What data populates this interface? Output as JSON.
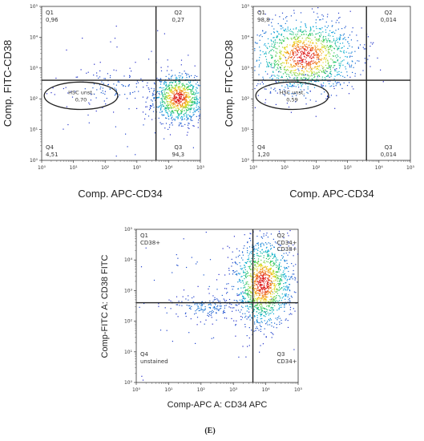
{
  "caption": "(E)",
  "chart_data": [
    {
      "type": "scatter",
      "subtype": "flow-cytometry-density-dot-plot",
      "x_scale": "log",
      "y_scale": "log",
      "xlim": [
        1,
        100000
      ],
      "ylim": [
        1,
        100000
      ],
      "x_ticks": [
        "10⁰",
        "10¹",
        "10²",
        "10³",
        "10⁴",
        "10⁵"
      ],
      "y_ticks": [
        "10⁰",
        "10¹",
        "10²",
        "10³",
        "10⁴",
        "10⁵"
      ],
      "xlabel": "Comp. APC-CD34",
      "ylabel": "Comp. FITC-CD38",
      "quadrant_gate": {
        "x": 4000,
        "y": 400
      },
      "quadrants": [
        {
          "name": "Q1",
          "value": "0,96",
          "position": "top-left"
        },
        {
          "name": "Q2",
          "value": "0,27",
          "position": "top-right"
        },
        {
          "name": "Q3",
          "value": "94,3",
          "position": "bottom-right"
        },
        {
          "name": "Q4",
          "value": "4,51",
          "position": "bottom-left"
        }
      ],
      "gates": [
        {
          "name": "HSC unst.",
          "value": "0,70",
          "shape": "ellipse",
          "x_range": [
            1.2,
            250
          ],
          "y_range": [
            45,
            350
          ]
        }
      ],
      "populations": [
        {
          "x": 20000,
          "y": 110,
          "sx": 0.18,
          "sy": 0.18,
          "n": 900
        },
        {
          "x": 150,
          "y": 230,
          "sx": 0.4,
          "sy": 0.15,
          "n": 120
        },
        {
          "x": 2000,
          "y": 40,
          "sx": 0.8,
          "sy": 0.7,
          "n": 70
        }
      ],
      "grid": false
    },
    {
      "type": "scatter",
      "subtype": "flow-cytometry-density-dot-plot",
      "x_scale": "log",
      "y_scale": "log",
      "xlim": [
        1,
        100000
      ],
      "ylim": [
        1,
        100000
      ],
      "x_ticks": [
        "10⁰",
        "10¹",
        "10²",
        "10³",
        "10⁴",
        "10⁵"
      ],
      "y_ticks": [
        "10⁰",
        "10¹",
        "10²",
        "10³",
        "10⁴",
        "10⁵"
      ],
      "xlabel": "Comp. APC-CD34",
      "ylabel": "Comp. FITC-CD38",
      "quadrant_gate": {
        "x": 4000,
        "y": 400
      },
      "quadrants": [
        {
          "name": "Q1",
          "value": "98,8",
          "position": "top-left"
        },
        {
          "name": "Q2",
          "value": "0,014",
          "position": "top-right"
        },
        {
          "name": "Q3",
          "value": "0,014",
          "position": "bottom-right"
        },
        {
          "name": "Q4",
          "value": "1,20",
          "position": "bottom-left"
        }
      ],
      "gates": [
        {
          "name": "HSC unst.",
          "value": "0,59",
          "shape": "ellipse",
          "x_range": [
            1.2,
            250
          ],
          "y_range": [
            45,
            350
          ]
        }
      ],
      "populations": [
        {
          "x": 40,
          "y": 2500,
          "sx": 0.38,
          "sy": 0.28,
          "n": 1300
        },
        {
          "x": 40,
          "y": 400,
          "sx": 0.35,
          "sy": 0.12,
          "n": 80
        }
      ],
      "grid": false
    },
    {
      "type": "scatter",
      "subtype": "flow-cytometry-density-dot-plot",
      "x_scale": "log",
      "y_scale": "log",
      "xlim": [
        1,
        100000
      ],
      "ylim": [
        1,
        100000
      ],
      "x_ticks": [
        "10⁰",
        "10¹",
        "10²",
        "10³",
        "10⁴",
        "10⁵"
      ],
      "y_ticks": [
        "10⁰",
        "10¹",
        "10²",
        "10³",
        "10⁴",
        "10⁵"
      ],
      "xlabel": "Comp-APC A: CD34 APC",
      "ylabel": "Comp-FITC A: CD38 FITC",
      "quadrant_gate": {
        "x": 4000,
        "y": 400
      },
      "quadrants": [
        {
          "name": "Q1",
          "value": "CD38+",
          "position": "top-left"
        },
        {
          "name": "Q2",
          "value": "CD34+\nCD38+",
          "position": "top-right"
        },
        {
          "name": "Q3",
          "value": "CD34+",
          "position": "bottom-right"
        },
        {
          "name": "Q4",
          "value": "unstained",
          "position": "bottom-left"
        }
      ],
      "gates": [],
      "populations": [
        {
          "x": 8000,
          "y": 1800,
          "sx": 0.2,
          "sy": 0.32,
          "n": 1300
        },
        {
          "x": 120,
          "y": 300,
          "sx": 0.28,
          "sy": 0.1,
          "n": 160
        },
        {
          "x": 300,
          "y": 800,
          "sx": 0.9,
          "sy": 0.6,
          "n": 110
        }
      ],
      "grid": false
    }
  ]
}
